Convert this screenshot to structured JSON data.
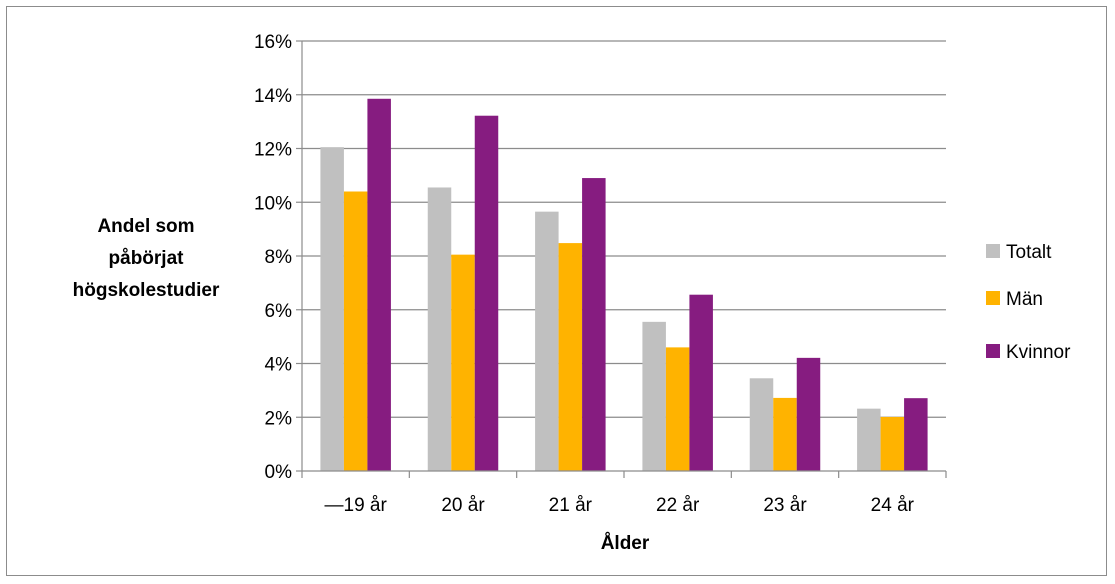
{
  "chart_data": {
    "type": "bar",
    "categories": [
      "—19 år",
      "20 år",
      "21 år",
      "22 år",
      "23 år",
      "24 år"
    ],
    "series": [
      {
        "name": "Totalt",
        "values": [
          0.1205,
          0.1055,
          0.0965,
          0.0555,
          0.0345,
          0.0232
        ],
        "color": "#C0C0C0"
      },
      {
        "name": "Män",
        "values": [
          0.104,
          0.0805,
          0.0848,
          0.046,
          0.0272,
          0.0201
        ],
        "color": "#FFB300"
      },
      {
        "name": "Kvinnor",
        "values": [
          0.1385,
          0.1322,
          0.109,
          0.0656,
          0.0421,
          0.0271
        ],
        "color": "#861C80"
      }
    ],
    "ylim": [
      0,
      0.16
    ],
    "yticks": [
      "0%",
      "2%",
      "4%",
      "6%",
      "8%",
      "10%",
      "12%",
      "14%",
      "16%"
    ],
    "ylabel": [
      "Andel som",
      "påbörjat",
      "högskolestudier"
    ],
    "xlabel": "Ålder",
    "grid": true,
    "legend_position": "right"
  }
}
